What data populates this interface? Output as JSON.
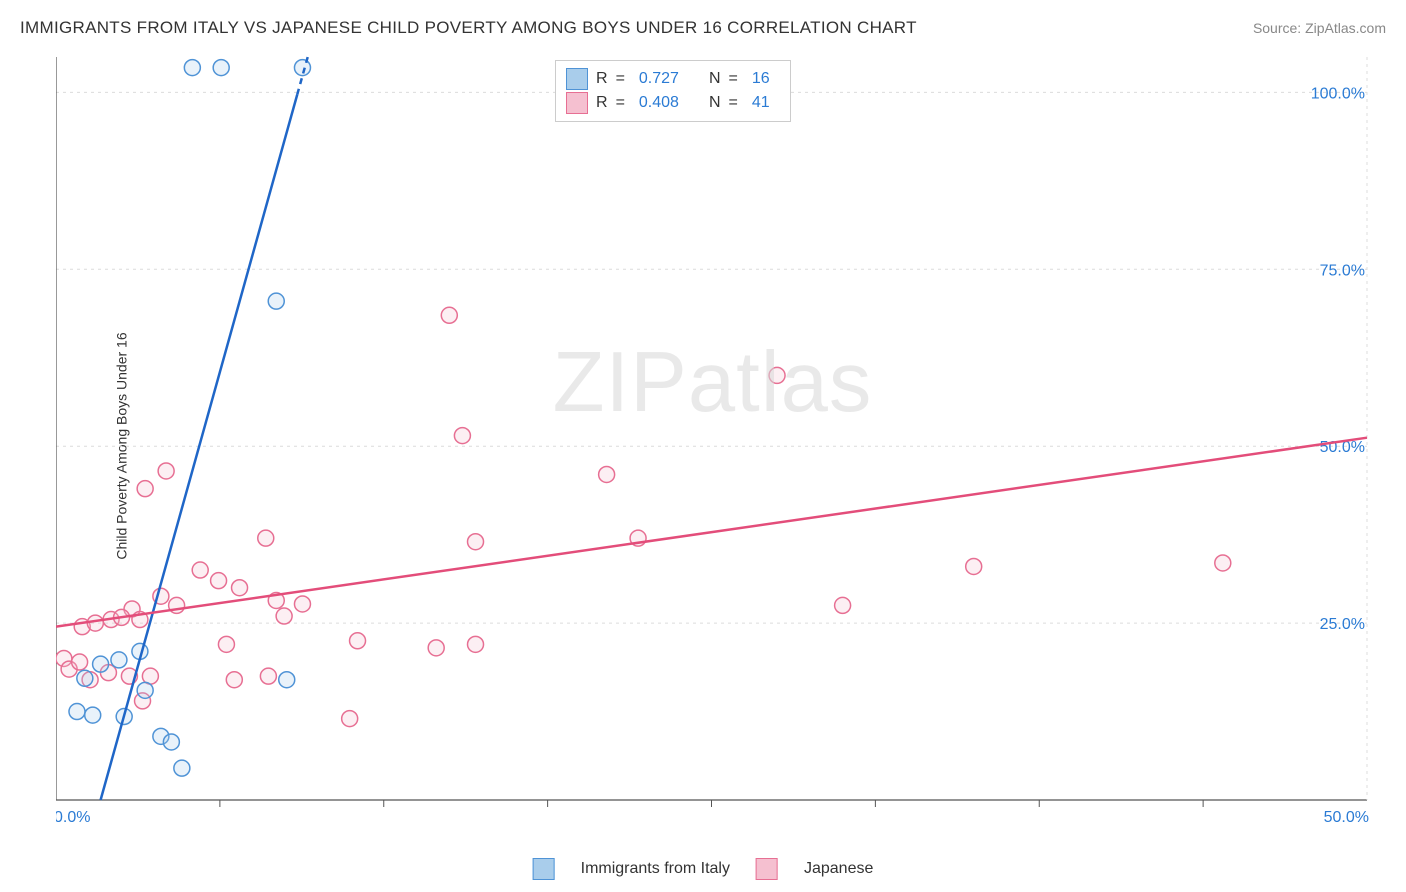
{
  "title": "IMMIGRANTS FROM ITALY VS JAPANESE CHILD POVERTY AMONG BOYS UNDER 16 CORRELATION CHART",
  "source_label": "Source: ",
  "source_name": "ZipAtlas.com",
  "y_axis_label": "Child Poverty Among Boys Under 16",
  "watermark": "ZIPatlas",
  "chart": {
    "type": "scatter-correlation",
    "xlim": [
      0,
      50
    ],
    "ylim": [
      0,
      105
    ],
    "x_ticks": [
      0,
      50
    ],
    "x_tick_labels": [
      "0.0%",
      "50.0%"
    ],
    "x_minor_ticks": [
      6.25,
      12.5,
      18.75,
      25,
      31.25,
      37.5,
      43.75
    ],
    "y_ticks": [
      25,
      50,
      75,
      100
    ],
    "y_tick_labels": [
      "25.0%",
      "50.0%",
      "75.0%",
      "100.0%"
    ],
    "tick_label_color": "#2b7bd4",
    "tick_label_fontsize": 16,
    "grid_color": "#dcdcdc",
    "axis_color": "#555555",
    "background_color": "#ffffff",
    "marker_radius": 8,
    "marker_stroke_width": 1.5,
    "marker_fill_opacity": 0.25,
    "trend_line_width": 2.5,
    "series": [
      {
        "name": "Immigrants from Italy",
        "color_stroke": "#4f93d6",
        "color_fill": "#a9cdeb",
        "trend_color": "#1f66c7",
        "trend_dash_color": "#1f66c7",
        "R": "0.727",
        "N": "16",
        "points": [
          [
            5.2,
            103.5
          ],
          [
            6.3,
            103.5
          ],
          [
            9.4,
            103.5
          ],
          [
            8.4,
            70.5
          ],
          [
            1.7,
            19.2
          ],
          [
            2.4,
            19.8
          ],
          [
            1.1,
            17.2
          ],
          [
            0.8,
            12.5
          ],
          [
            1.4,
            12.0
          ],
          [
            2.6,
            11.8
          ],
          [
            3.2,
            21.0
          ],
          [
            4.0,
            9.0
          ],
          [
            4.4,
            8.2
          ],
          [
            3.4,
            15.5
          ],
          [
            4.8,
            4.5
          ],
          [
            8.8,
            17.0
          ]
        ],
        "trend": {
          "x1": 1.7,
          "y1": 0,
          "x2": 9.6,
          "y2": 105,
          "dash_from_x": 9.2
        }
      },
      {
        "name": "Japanese",
        "color_stroke": "#e76f93",
        "color_fill": "#f5c0d0",
        "trend_color": "#e34d7a",
        "R": "0.408",
        "N": "41",
        "points": [
          [
            15.0,
            68.5
          ],
          [
            27.5,
            60.0
          ],
          [
            15.5,
            51.5
          ],
          [
            4.2,
            46.5
          ],
          [
            3.4,
            44.0
          ],
          [
            21.0,
            46.0
          ],
          [
            35.0,
            33.0
          ],
          [
            44.5,
            33.5
          ],
          [
            8.0,
            37.0
          ],
          [
            16.0,
            36.5
          ],
          [
            22.2,
            37.0
          ],
          [
            5.5,
            32.5
          ],
          [
            6.2,
            31.0
          ],
          [
            8.4,
            28.2
          ],
          [
            9.4,
            27.7
          ],
          [
            8.7,
            26.0
          ],
          [
            7.0,
            30.0
          ],
          [
            4.0,
            28.8
          ],
          [
            4.6,
            27.5
          ],
          [
            2.9,
            27.0
          ],
          [
            30.0,
            27.5
          ],
          [
            11.5,
            22.5
          ],
          [
            16.0,
            22.0
          ],
          [
            1.0,
            24.5
          ],
          [
            1.5,
            25.0
          ],
          [
            2.1,
            25.5
          ],
          [
            2.5,
            25.8
          ],
          [
            3.2,
            25.5
          ],
          [
            0.3,
            20.0
          ],
          [
            0.5,
            18.5
          ],
          [
            0.9,
            19.5
          ],
          [
            6.5,
            22.0
          ],
          [
            14.5,
            21.5
          ],
          [
            2.8,
            17.5
          ],
          [
            3.6,
            17.5
          ],
          [
            8.1,
            17.5
          ],
          [
            2.0,
            18.0
          ],
          [
            1.3,
            17.0
          ],
          [
            3.3,
            14.0
          ],
          [
            6.8,
            17.0
          ],
          [
            11.2,
            11.5
          ]
        ],
        "trend": {
          "x1": 0,
          "y1": 24.5,
          "x2": 50,
          "y2": 51.2
        }
      }
    ]
  },
  "legend_stats": {
    "R_label": "R",
    "N_label": "N",
    "eq": "="
  }
}
